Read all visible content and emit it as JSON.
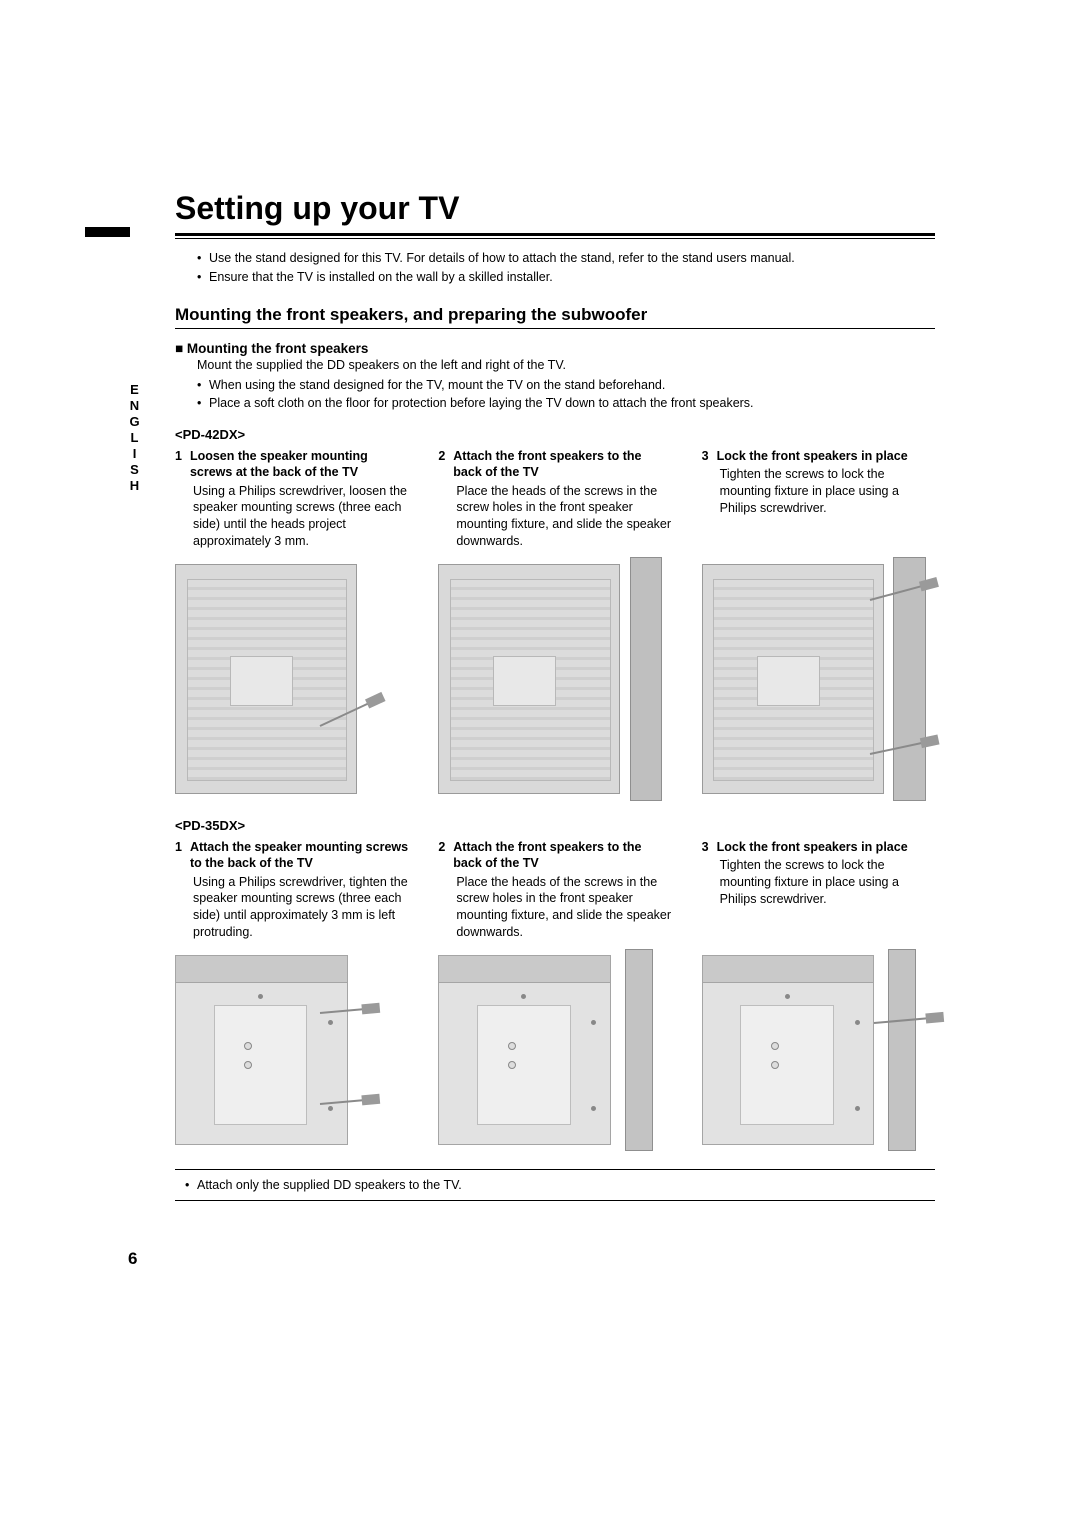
{
  "side_language": "ENGLISH",
  "title": "Setting up your TV",
  "intro_bullets": [
    "Use the stand designed for this TV. For details of how to attach the stand, refer to the stand users manual.",
    "Ensure that the TV is installed on the wall by a skilled installer."
  ],
  "section_heading": "Mounting the front speakers, and preparing the subwoofer",
  "subsection": {
    "title": "Mounting the front speakers",
    "intro": "Mount the supplied the DD speakers on the left and right of the TV.",
    "bullets": [
      "When using the stand designed for the TV, mount the TV on the stand beforehand.",
      "Place a soft cloth on the floor for protection before laying the TV down to attach the front speakers."
    ]
  },
  "models": [
    {
      "label": "<PD-42DX>",
      "steps": [
        {
          "num": "1",
          "title": "Loosen the speaker mounting screws at the back of the TV",
          "body": "Using a Philips screwdriver, loosen the speaker mounting screws (three each side) until the heads project approximately 3 mm."
        },
        {
          "num": "2",
          "title": "Attach the front speakers to the back of the TV",
          "body": "Place the heads of the screws in the screw holes in the front speaker mounting fixture, and slide the speaker downwards."
        },
        {
          "num": "3",
          "title": "Lock the front speakers in place",
          "body": "Tighten the screws to lock the mounting fixture in place using a Philips screwdriver."
        }
      ]
    },
    {
      "label": "<PD-35DX>",
      "steps": [
        {
          "num": "1",
          "title": "Attach the speaker mounting screws to the back of the TV",
          "body": "Using a Philips screwdriver, tighten the speaker mounting screws (three each side) until approximately 3 mm is left protruding."
        },
        {
          "num": "2",
          "title": "Attach the front speakers to the back of the TV",
          "body": "Place the heads of the screws in the screw holes in the front speaker mounting fixture, and slide the speaker downwards."
        },
        {
          "num": "3",
          "title": "Lock the front speakers in place",
          "body": "Tighten the screws to lock the mounting fixture in place using a Philips screwdriver."
        }
      ]
    }
  ],
  "footnote": "Attach only the supplied DD speakers to the TV.",
  "page_number": "6",
  "colors": {
    "text": "#000000",
    "bg": "#ffffff",
    "diagram_fill": "#d9d9d9",
    "diagram_border": "#9a9a9a"
  },
  "typography": {
    "title_fontsize_pt": 24,
    "h2_fontsize_pt": 13,
    "body_fontsize_pt": 9.5,
    "font_family": "Arial"
  }
}
